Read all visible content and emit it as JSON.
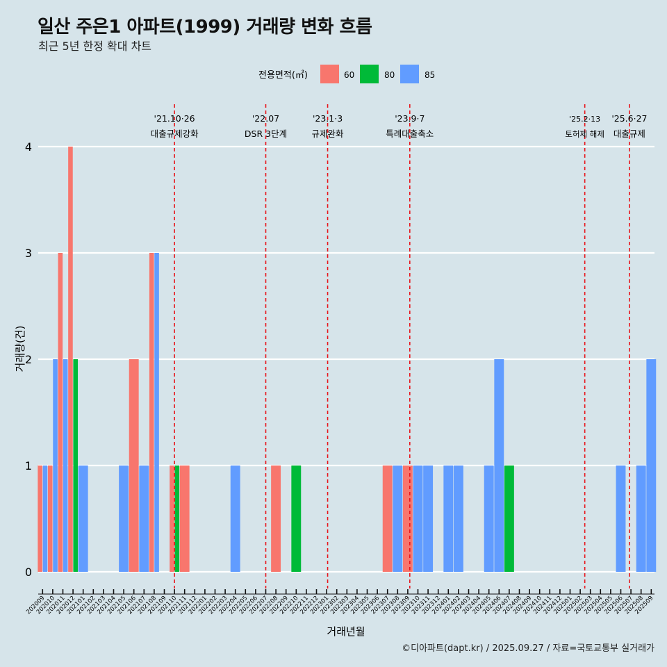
{
  "title": "일산 주은1 아파트(1999) 거래량 변화 흐름",
  "subtitle": "최근 5년 한정 확대 차트",
  "caption": "©디아파트(dapt.kr) / 2025.09.27 / 자료=국토교통부 실거래가",
  "colors": {
    "background": "#d6e4ea",
    "s60": "#f8766d",
    "s80": "#00ba38",
    "s85": "#619cff",
    "vline": "#e8151b",
    "grid": "#ffffff"
  },
  "chart_data": {
    "type": "bar",
    "title": "일산 주은1 아파트(1999) 거래량 변화 흐름",
    "xlabel": "거래년월",
    "ylabel": "거래량(건)",
    "ylim": [
      -0.18,
      4.15
    ],
    "yticks": [
      0,
      1,
      2,
      3,
      4
    ],
    "legend_title": "전용면적(㎡)",
    "legend_position": "top",
    "categories": [
      "202009",
      "202010",
      "202011",
      "202012",
      "202101",
      "202102",
      "202103",
      "202104",
      "202105",
      "202106",
      "202107",
      "202108",
      "202109",
      "202110",
      "202111",
      "202112",
      "202201",
      "202202",
      "202203",
      "202204",
      "202205",
      "202206",
      "202207",
      "202208",
      "202209",
      "202210",
      "202211",
      "202212",
      "202301",
      "202302",
      "202303",
      "202304",
      "202305",
      "202306",
      "202307",
      "202308",
      "202309",
      "202310",
      "202311",
      "202312",
      "202401",
      "202402",
      "202403",
      "202404",
      "202405",
      "202406",
      "202407",
      "202408",
      "202409",
      "202410",
      "202411",
      "202412",
      "202501",
      "202502",
      "202503",
      "202504",
      "202505",
      "202506",
      "202507",
      "202508",
      "202509"
    ],
    "series": [
      {
        "name": "60",
        "color": "#f8766d",
        "points": [
          [
            "202009",
            1
          ],
          [
            "202010",
            1
          ],
          [
            "202011",
            3
          ],
          [
            "202012",
            4
          ],
          [
            "202106",
            2
          ],
          [
            "202108",
            3
          ],
          [
            "202110",
            1
          ],
          [
            "202111",
            1
          ],
          [
            "202208",
            1
          ],
          [
            "202307",
            1
          ],
          [
            "202309",
            1
          ]
        ]
      },
      {
        "name": "80",
        "color": "#00ba38",
        "points": [
          [
            "202012",
            2
          ],
          [
            "202110",
            1
          ],
          [
            "202210",
            1
          ],
          [
            "202407",
            1
          ]
        ]
      },
      {
        "name": "85",
        "color": "#619cff",
        "points": [
          [
            "202009",
            1
          ],
          [
            "202010",
            2
          ],
          [
            "202011",
            2
          ],
          [
            "202101",
            1
          ],
          [
            "202105",
            1
          ],
          [
            "202107",
            1
          ],
          [
            "202108",
            3
          ],
          [
            "202204",
            1
          ],
          [
            "202308",
            1
          ],
          [
            "202310",
            1
          ],
          [
            "202311",
            1
          ],
          [
            "202401",
            1
          ],
          [
            "202402",
            1
          ],
          [
            "202405",
            1
          ],
          [
            "202406",
            2
          ],
          [
            "202506",
            1
          ],
          [
            "202508",
            1
          ],
          [
            "202509",
            2
          ]
        ]
      }
    ],
    "events": [
      {
        "month": "202110",
        "offset": 0.0,
        "date": "'21.10·26",
        "label": "대출규제강화"
      },
      {
        "month": "202207",
        "offset": 0.0,
        "date": "'22.07",
        "label": "DSR 3단계"
      },
      {
        "month": "202301",
        "offset": 0.1,
        "date": "'23.1·3",
        "label": "규제완화"
      },
      {
        "month": "202309",
        "offset": 0.2,
        "date": "'23.9·7",
        "label": "특례대출축소"
      },
      {
        "month": "202502",
        "offset": 0.45,
        "date": "'25.2·13",
        "label": "토허제 해제"
      },
      {
        "month": "202506",
        "offset": 0.85,
        "date": "'25.6·27",
        "label": "대출규제"
      }
    ]
  }
}
